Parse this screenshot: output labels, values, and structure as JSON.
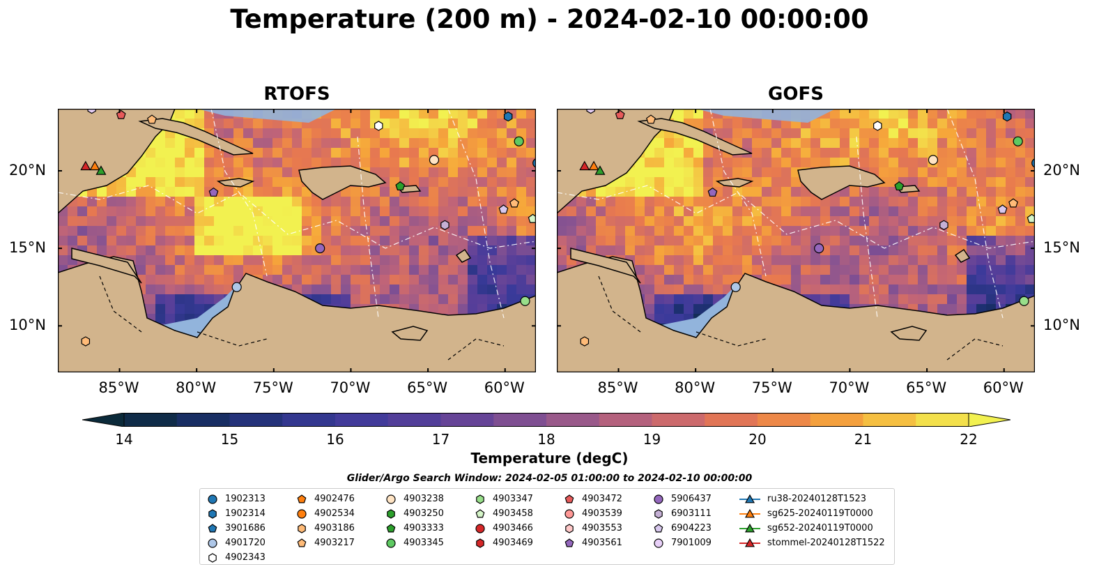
{
  "title": "Temperature (200 m) - 2024-02-10 00:00:00",
  "panels": [
    {
      "name": "RTOFS"
    },
    {
      "name": "GOFS"
    }
  ],
  "map": {
    "lon_range": [
      -89,
      -58
    ],
    "lat_range": [
      7,
      24
    ],
    "lon_ticks": [
      "85°W",
      "80°W",
      "75°W",
      "70°W",
      "65°W",
      "60°W"
    ],
    "lon_tick_values": [
      -85,
      -80,
      -75,
      -70,
      -65,
      -60
    ],
    "lat_ticks": [
      "10°N",
      "15°N",
      "20°N"
    ],
    "lat_tick_values": [
      10,
      15,
      20
    ],
    "land_color": "#d2b48c",
    "shelf_color": "#92b4dc",
    "deep_color": "#0b2a3a"
  },
  "colorbar": {
    "label": "Temperature (degC)",
    "ticks": [
      "14",
      "15",
      "16",
      "17",
      "18",
      "19",
      "20",
      "21",
      "22"
    ],
    "min": 14,
    "max": 22,
    "colormap": "thermal",
    "extend": "both"
  },
  "legend": {
    "title": "Glider/Argo Search Window: 2024-02-05 01:00:00 to 2024-02-10 00:00:00",
    "columns": [
      [
        {
          "label": "1902313",
          "marker": "circle",
          "color": "#1f77b4"
        },
        {
          "label": "1902314",
          "marker": "hexagon",
          "color": "#1f77b4"
        },
        {
          "label": "3901686",
          "marker": "pentagon",
          "color": "#1f77b4"
        },
        {
          "label": "4901720",
          "marker": "circle",
          "color": "#aec7e8"
        },
        {
          "label": "4902343",
          "marker": "hexagon",
          "color": "#ffffff"
        }
      ],
      [
        {
          "label": "4902476",
          "marker": "pentagon",
          "color": "#ff7f0e"
        },
        {
          "label": "4902534",
          "marker": "circle",
          "color": "#ff7f0e"
        },
        {
          "label": "4903186",
          "marker": "hexagon",
          "color": "#ffbb78"
        },
        {
          "label": "4903217",
          "marker": "pentagon",
          "color": "#ffbb78"
        }
      ],
      [
        {
          "label": "4903238",
          "marker": "circle",
          "color": "#ffe4c4"
        },
        {
          "label": "4903250",
          "marker": "hexagon",
          "color": "#2ca02c"
        },
        {
          "label": "4903333",
          "marker": "pentagon",
          "color": "#2ca02c"
        },
        {
          "label": "4903345",
          "marker": "circle",
          "color": "#5ec962"
        }
      ],
      [
        {
          "label": "4903347",
          "marker": "hexagon",
          "color": "#98df8a"
        },
        {
          "label": "4903458",
          "marker": "pentagon",
          "color": "#d5f5c8"
        },
        {
          "label": "4903466",
          "marker": "circle",
          "color": "#d62728"
        },
        {
          "label": "4903469",
          "marker": "hexagon",
          "color": "#d62728"
        }
      ],
      [
        {
          "label": "4903472",
          "marker": "pentagon",
          "color": "#e75a5a"
        },
        {
          "label": "4903539",
          "marker": "circle",
          "color": "#ff9896"
        },
        {
          "label": "4903553",
          "marker": "hexagon",
          "color": "#ffc8c8"
        },
        {
          "label": "4903561",
          "marker": "pentagon",
          "color": "#9467bd"
        }
      ],
      [
        {
          "label": "5906437",
          "marker": "circle",
          "color": "#9467bd"
        },
        {
          "label": "6903111",
          "marker": "hexagon",
          "color": "#c5b0d5"
        },
        {
          "label": "6904223",
          "marker": "pentagon",
          "color": "#d8c8ee"
        },
        {
          "label": "7901009",
          "marker": "circle",
          "color": "#e8d0f8"
        }
      ],
      [
        {
          "label": "ru38-20240128T1523",
          "marker": "triangle",
          "color": "#1f77b4"
        },
        {
          "label": "sg625-20240119T0000",
          "marker": "triangle",
          "color": "#ff7f0e"
        },
        {
          "label": "sg652-20240119T0000",
          "marker": "triangle",
          "color": "#2ca02c"
        },
        {
          "label": "stommel-20240128T1522",
          "marker": "triangle",
          "color": "#d62728"
        }
      ]
    ]
  },
  "markers": [
    {
      "lon": -86.8,
      "lat": 24.0,
      "marker": "hexagon",
      "color": "#e8d0f8"
    },
    {
      "lon": -84.9,
      "lat": 23.6,
      "marker": "pentagon",
      "color": "#e75a5a"
    },
    {
      "lon": -82.9,
      "lat": 23.3,
      "marker": "pentagon",
      "color": "#ffbb78"
    },
    {
      "lon": -68.2,
      "lat": 22.9,
      "marker": "hexagon",
      "color": "#ffffff"
    },
    {
      "lon": -59.8,
      "lat": 23.5,
      "marker": "hexagon",
      "color": "#1f77b4"
    },
    {
      "lon": -59.1,
      "lat": 21.9,
      "marker": "circle",
      "color": "#5ec962"
    },
    {
      "lon": -57.9,
      "lat": 20.5,
      "marker": "circle",
      "color": "#1f77b4"
    },
    {
      "lon": -64.6,
      "lat": 20.7,
      "marker": "circle",
      "color": "#ffe4c4"
    },
    {
      "lon": -66.8,
      "lat": 19.0,
      "marker": "pentagon",
      "color": "#2ca02c"
    },
    {
      "lon": -78.9,
      "lat": 18.6,
      "marker": "pentagon",
      "color": "#9467bd"
    },
    {
      "lon": -59.4,
      "lat": 17.9,
      "marker": "pentagon",
      "color": "#ffbb78"
    },
    {
      "lon": -60.1,
      "lat": 17.5,
      "marker": "pentagon",
      "color": "#d8c8ee"
    },
    {
      "lon": -58.2,
      "lat": 16.9,
      "marker": "pentagon",
      "color": "#d5f5c8"
    },
    {
      "lon": -63.9,
      "lat": 16.5,
      "marker": "hexagon",
      "color": "#c5b0d5"
    },
    {
      "lon": -72.0,
      "lat": 15.0,
      "marker": "circle",
      "color": "#9467bd"
    },
    {
      "lon": -77.4,
      "lat": 12.5,
      "marker": "circle",
      "color": "#aec7e8"
    },
    {
      "lon": -58.7,
      "lat": 11.6,
      "marker": "circle",
      "color": "#98df8a"
    },
    {
      "lon": -87.2,
      "lat": 9.0,
      "marker": "hexagon",
      "color": "#ffbb78"
    },
    {
      "lon": -87.2,
      "lat": 20.3,
      "marker": "triangle",
      "color": "#d62728"
    },
    {
      "lon": -86.6,
      "lat": 20.3,
      "marker": "triangle",
      "color": "#ff7f0e"
    },
    {
      "lon": -86.2,
      "lat": 20.0,
      "marker": "triangle",
      "color": "#2ca02c"
    }
  ]
}
